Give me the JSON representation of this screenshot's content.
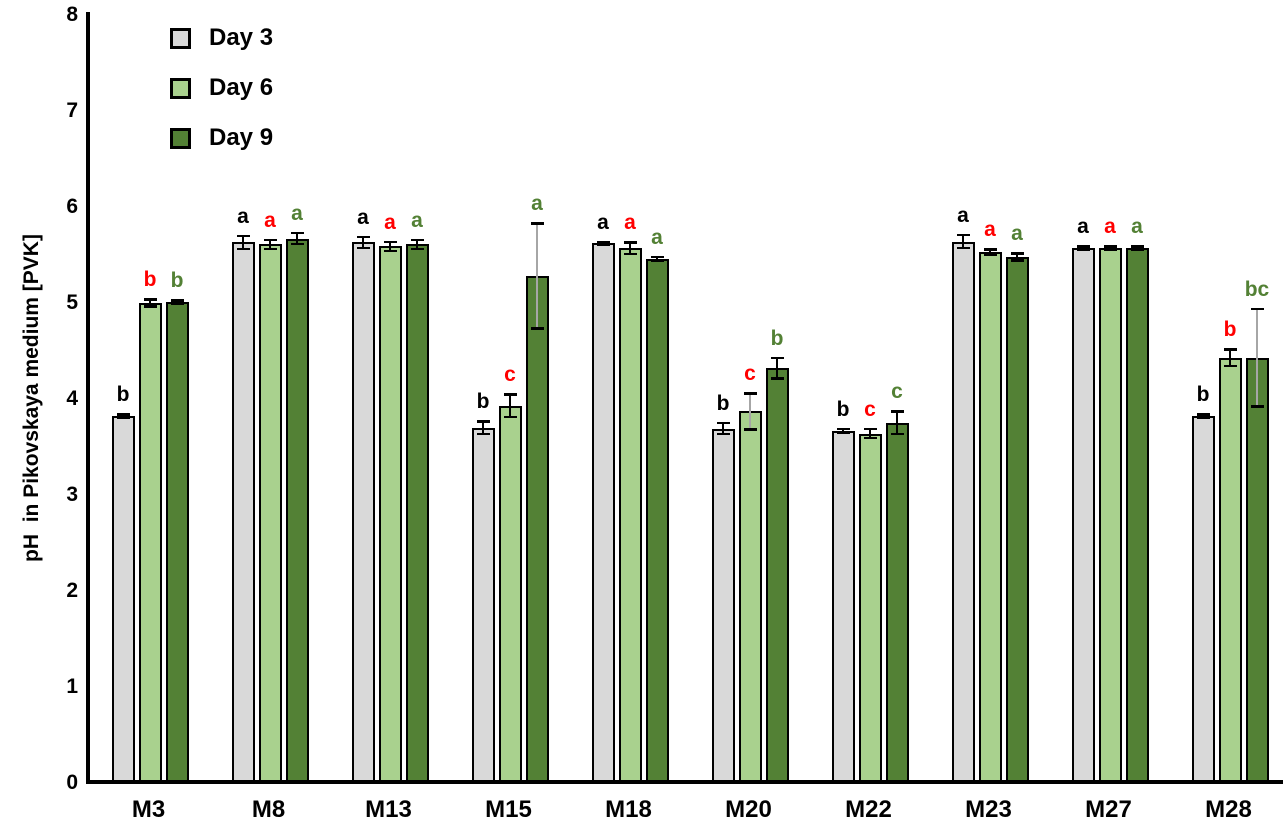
{
  "chart_data": {
    "type": "bar",
    "title": "",
    "xlabel": "",
    "ylabel": "pH  in Pikovskaya medium [PVK]",
    "ylim": [
      0,
      8
    ],
    "yticks": [
      0,
      1,
      2,
      3,
      4,
      5,
      6,
      7,
      8
    ],
    "grid": false,
    "legend_position": "top-left",
    "categories": [
      "M3",
      "M8",
      "M13",
      "M15",
      "M18",
      "M20",
      "M22",
      "M23",
      "M27",
      "M28"
    ],
    "series": [
      {
        "name": "Day 3",
        "color": "#d9d9d9",
        "letter_color": "#000000",
        "values": [
          3.81,
          5.62,
          5.62,
          3.69,
          5.61,
          3.68,
          3.66,
          5.63,
          5.56,
          3.81
        ],
        "errors": [
          0.02,
          0.07,
          0.06,
          0.07,
          0.02,
          0.06,
          0.02,
          0.07,
          0.02,
          0.02
        ],
        "letters": [
          "b",
          "a",
          "a",
          "b",
          "a",
          "b",
          "b",
          "a",
          "a",
          "b"
        ],
        "gray_whisker": [
          false,
          false,
          false,
          false,
          false,
          false,
          false,
          false,
          false,
          false
        ]
      },
      {
        "name": "Day 6",
        "color": "#a9d18e",
        "letter_color": "#ff0000",
        "values": [
          4.99,
          5.6,
          5.58,
          3.92,
          5.56,
          3.86,
          3.63,
          5.52,
          5.56,
          4.42
        ],
        "errors": [
          0.04,
          0.05,
          0.05,
          0.12,
          0.06,
          0.19,
          0.05,
          0.03,
          0.02,
          0.09
        ],
        "letters": [
          "b",
          "a",
          "a",
          "c",
          "a",
          "c",
          "c",
          "a",
          "a",
          "b"
        ],
        "gray_whisker": [
          false,
          false,
          false,
          false,
          false,
          true,
          false,
          false,
          false,
          false
        ]
      },
      {
        "name": "Day 9",
        "color": "#538135",
        "letter_color": "#538135",
        "values": [
          5.0,
          5.66,
          5.6,
          5.27,
          5.45,
          4.31,
          3.74,
          5.47,
          5.56,
          4.42
        ],
        "errors": [
          0.02,
          0.06,
          0.05,
          0.55,
          0.02,
          0.11,
          0.12,
          0.04,
          0.02,
          0.51
        ],
        "letters": [
          "b",
          "a",
          "a",
          "a",
          "a",
          "b",
          "c",
          "a",
          "a",
          "bc"
        ],
        "gray_whisker": [
          false,
          false,
          false,
          true,
          false,
          false,
          false,
          false,
          false,
          true
        ]
      }
    ],
    "error_bar_gray_color": "#a6a6a6"
  }
}
